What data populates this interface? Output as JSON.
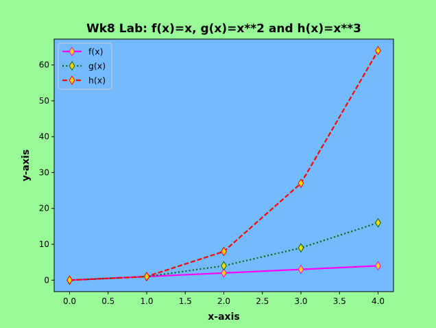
{
  "chart_data": {
    "type": "line",
    "title": "Wk8 Lab: f(x)=x, g(x)=x**2 and h(x)=x**3",
    "xlabel": "x-axis",
    "ylabel": "y-axis",
    "x": [
      0,
      1,
      2,
      3,
      4
    ],
    "xlim": [
      -0.2,
      4.2
    ],
    "ylim": [
      -3.2,
      67.2
    ],
    "xticks": [
      0.0,
      0.5,
      1.0,
      1.5,
      2.0,
      2.5,
      3.0,
      3.5,
      4.0
    ],
    "xtick_labels": [
      "0.0",
      "0.5",
      "1.0",
      "1.5",
      "2.0",
      "2.5",
      "3.0",
      "3.5",
      "4.0"
    ],
    "yticks": [
      0,
      10,
      20,
      30,
      40,
      50,
      60
    ],
    "ytick_labels": [
      "0",
      "10",
      "20",
      "30",
      "40",
      "50",
      "60"
    ],
    "grid": false,
    "legend_position": "upper-left",
    "figure_background": "#98fb98",
    "plot_background": "#73baff",
    "series": [
      {
        "name": "f(x)",
        "values": [
          0,
          1,
          2,
          3,
          4
        ],
        "color": "#ff00ff",
        "linestyle": "solid",
        "marker": "thin-diamond",
        "marker_face": "#ffd700",
        "marker_edge": "#ff00ff"
      },
      {
        "name": "g(x)",
        "values": [
          0,
          1,
          4,
          9,
          16
        ],
        "color": "#006400",
        "linestyle": "dotted",
        "marker": "thin-diamond",
        "marker_face": "#ffd700",
        "marker_edge": "#006400"
      },
      {
        "name": "h(x)",
        "values": [
          0,
          1,
          8,
          27,
          64
        ],
        "color": "#ff0000",
        "linestyle": "dashed",
        "marker": "thin-diamond",
        "marker_face": "#ffd700",
        "marker_edge": "#ff0000"
      }
    ]
  }
}
